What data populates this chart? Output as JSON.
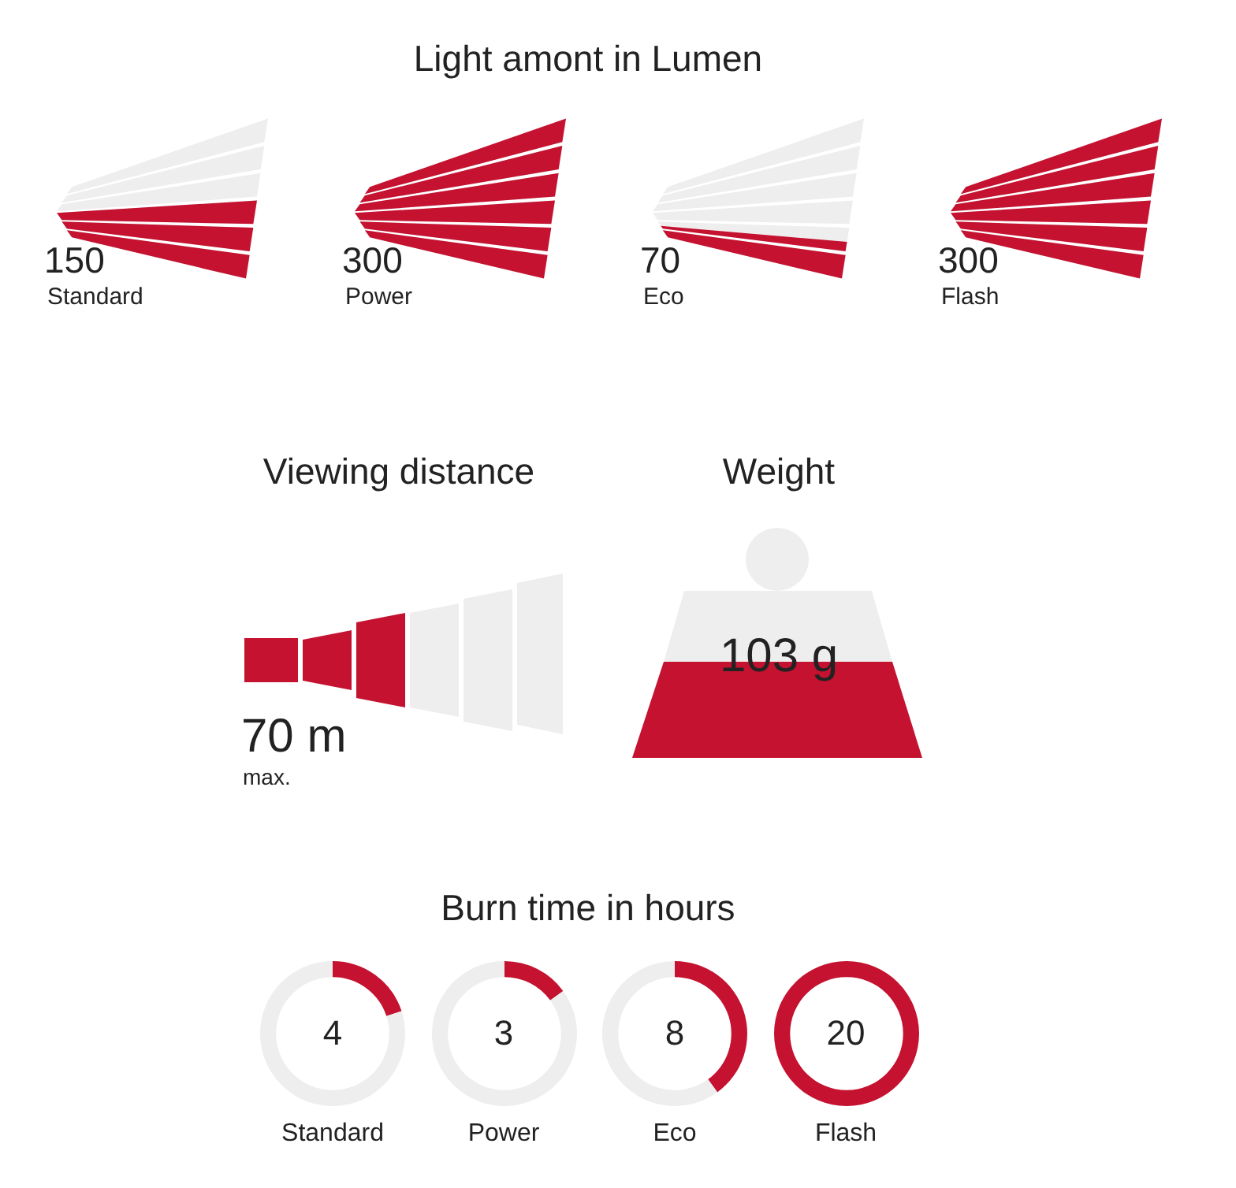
{
  "chart_data": [
    {
      "type": "other",
      "title": "Light amont in Lumen",
      "categories": [
        "Standard",
        "Power",
        "Eco",
        "Flash"
      ],
      "values": [
        150,
        300,
        70,
        300
      ],
      "color": "#c41230",
      "data_labels": true
    },
    {
      "type": "other",
      "title": "Viewing distance",
      "annotations": [
        "70 m",
        "max."
      ]
    },
    {
      "type": "other",
      "title": "Weight",
      "annotations": [
        "103 g"
      ]
    },
    {
      "type": "other",
      "title": "Burn time in hours",
      "categories": [
        "Standard",
        "Power",
        "Eco",
        "Flash"
      ],
      "values": [
        4,
        3,
        8,
        20
      ],
      "color": "#c41230",
      "data_labels": true
    }
  ]
}
